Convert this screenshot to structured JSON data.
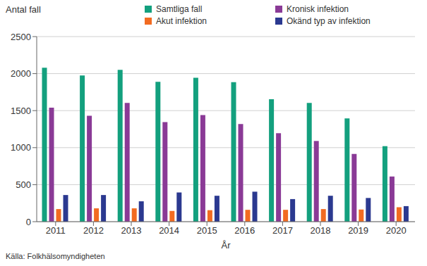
{
  "chart_data": {
    "type": "bar",
    "ylabel": "Antal fall",
    "xlabel": "År",
    "source": "Källa: Folkhälsomyndigheten",
    "categories": [
      "2011",
      "2012",
      "2013",
      "2014",
      "2015",
      "2016",
      "2017",
      "2018",
      "2019",
      "2020"
    ],
    "series": [
      {
        "name": "Samtliga fall",
        "color": "#13a07e",
        "values": [
          2080,
          1975,
          2050,
          1890,
          1945,
          1885,
          1655,
          1605,
          1395,
          1020
        ]
      },
      {
        "name": "Kronisk infektion",
        "color": "#8a3a96",
        "values": [
          1540,
          1430,
          1605,
          1345,
          1440,
          1320,
          1195,
          1090,
          915,
          610
        ]
      },
      {
        "name": "Akut infektion",
        "color": "#f26b21",
        "values": [
          170,
          180,
          180,
          145,
          155,
          160,
          160,
          170,
          165,
          195
        ]
      },
      {
        "name": "Okänd typ av infektion",
        "color": "#2b3990",
        "values": [
          360,
          360,
          275,
          395,
          350,
          405,
          305,
          350,
          320,
          210
        ]
      }
    ],
    "ylim": [
      0,
      2500
    ],
    "yticks": [
      0,
      500,
      1000,
      1500,
      2000,
      2500
    ],
    "grid": true
  }
}
